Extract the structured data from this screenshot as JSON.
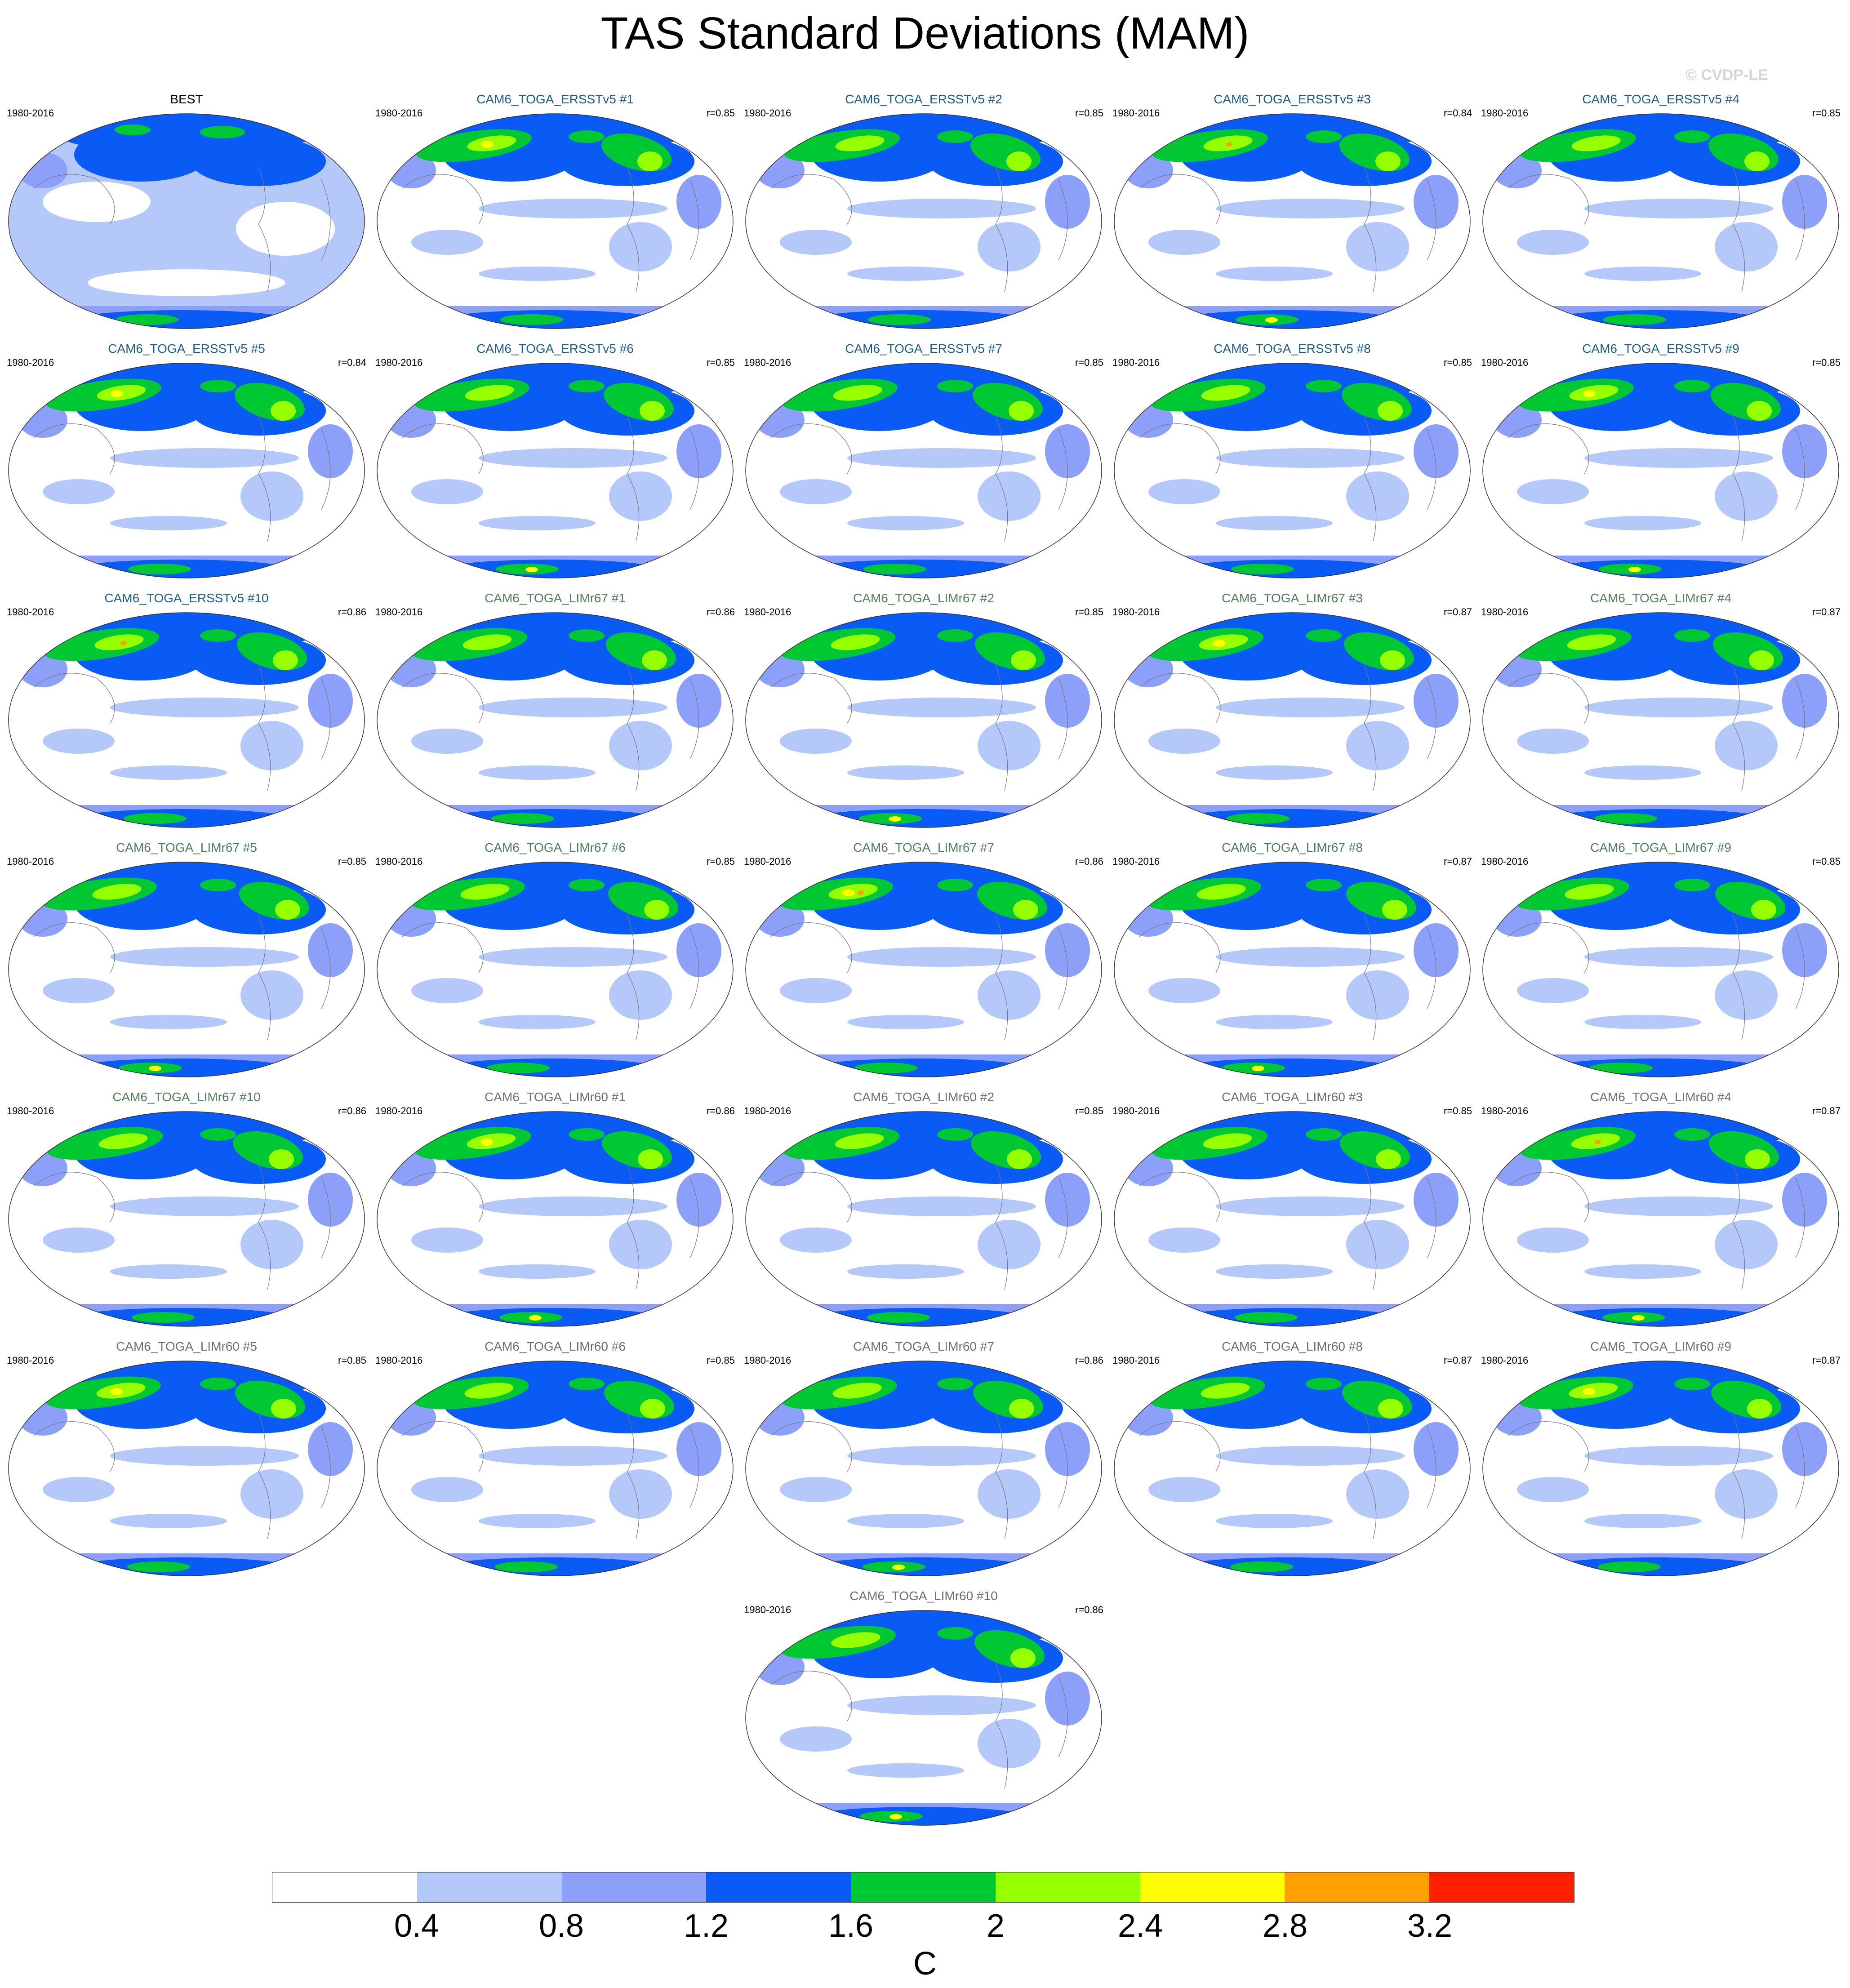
{
  "title": "TAS Standard Deviations (MAM)",
  "watermark": "© CVDP-LE",
  "colors": {
    "ersst_title": "#1d5e86",
    "limr67_title": "#4f7f56",
    "limr60_title": "#6f6f6f",
    "best_title": "#000000"
  },
  "chart_data": {
    "type": "heatmap",
    "variable": "TAS",
    "season": "MAM",
    "panels": [
      {
        "title": "BEST",
        "group": "best",
        "years": "1980-2016",
        "r": ""
      },
      {
        "title": "CAM6_TOGA_ERSSTv5 #1",
        "group": "ersst",
        "years": "1980-2016",
        "r": "r=0.85"
      },
      {
        "title": "CAM6_TOGA_ERSSTv5 #2",
        "group": "ersst",
        "years": "1980-2016",
        "r": "r=0.85"
      },
      {
        "title": "CAM6_TOGA_ERSSTv5 #3",
        "group": "ersst",
        "years": "1980-2016",
        "r": "r=0.84"
      },
      {
        "title": "CAM6_TOGA_ERSSTv5 #4",
        "group": "ersst",
        "years": "1980-2016",
        "r": "r=0.85"
      },
      {
        "title": "CAM6_TOGA_ERSSTv5 #5",
        "group": "ersst",
        "years": "1980-2016",
        "r": "r=0.84"
      },
      {
        "title": "CAM6_TOGA_ERSSTv5 #6",
        "group": "ersst",
        "years": "1980-2016",
        "r": "r=0.85"
      },
      {
        "title": "CAM6_TOGA_ERSSTv5 #7",
        "group": "ersst",
        "years": "1980-2016",
        "r": "r=0.85"
      },
      {
        "title": "CAM6_TOGA_ERSSTv5 #8",
        "group": "ersst",
        "years": "1980-2016",
        "r": "r=0.85"
      },
      {
        "title": "CAM6_TOGA_ERSSTv5 #9",
        "group": "ersst",
        "years": "1980-2016",
        "r": "r=0.85"
      },
      {
        "title": "CAM6_TOGA_ERSSTv5 #10",
        "group": "ersst",
        "years": "1980-2016",
        "r": "r=0.86"
      },
      {
        "title": "CAM6_TOGA_LIMr67 #1",
        "group": "limr67",
        "years": "1980-2016",
        "r": "r=0.86"
      },
      {
        "title": "CAM6_TOGA_LIMr67 #2",
        "group": "limr67",
        "years": "1980-2016",
        "r": "r=0.85"
      },
      {
        "title": "CAM6_TOGA_LIMr67 #3",
        "group": "limr67",
        "years": "1980-2016",
        "r": "r=0.87"
      },
      {
        "title": "CAM6_TOGA_LIMr67 #4",
        "group": "limr67",
        "years": "1980-2016",
        "r": "r=0.87"
      },
      {
        "title": "CAM6_TOGA_LIMr67 #5",
        "group": "limr67",
        "years": "1980-2016",
        "r": "r=0.85"
      },
      {
        "title": "CAM6_TOGA_LIMr67 #6",
        "group": "limr67",
        "years": "1980-2016",
        "r": "r=0.85"
      },
      {
        "title": "CAM6_TOGA_LIMr67 #7",
        "group": "limr67",
        "years": "1980-2016",
        "r": "r=0.86"
      },
      {
        "title": "CAM6_TOGA_LIMr67 #8",
        "group": "limr67",
        "years": "1980-2016",
        "r": "r=0.87"
      },
      {
        "title": "CAM6_TOGA_LIMr67 #9",
        "group": "limr67",
        "years": "1980-2016",
        "r": "r=0.85"
      },
      {
        "title": "CAM6_TOGA_LIMr67 #10",
        "group": "limr67",
        "years": "1980-2016",
        "r": "r=0.86"
      },
      {
        "title": "CAM6_TOGA_LIMr60 #1",
        "group": "limr60",
        "years": "1980-2016",
        "r": "r=0.86"
      },
      {
        "title": "CAM6_TOGA_LIMr60 #2",
        "group": "limr60",
        "years": "1980-2016",
        "r": "r=0.85"
      },
      {
        "title": "CAM6_TOGA_LIMr60 #3",
        "group": "limr60",
        "years": "1980-2016",
        "r": "r=0.85"
      },
      {
        "title": "CAM6_TOGA_LIMr60 #4",
        "group": "limr60",
        "years": "1980-2016",
        "r": "r=0.87"
      },
      {
        "title": "CAM6_TOGA_LIMr60 #5",
        "group": "limr60",
        "years": "1980-2016",
        "r": "r=0.85"
      },
      {
        "title": "CAM6_TOGA_LIMr60 #6",
        "group": "limr60",
        "years": "1980-2016",
        "r": "r=0.85"
      },
      {
        "title": "CAM6_TOGA_LIMr60 #7",
        "group": "limr60",
        "years": "1980-2016",
        "r": "r=0.86"
      },
      {
        "title": "CAM6_TOGA_LIMr60 #8",
        "group": "limr60",
        "years": "1980-2016",
        "r": "r=0.87"
      },
      {
        "title": "CAM6_TOGA_LIMr60 #9",
        "group": "limr60",
        "years": "1980-2016",
        "r": "r=0.87"
      },
      {
        "title": "CAM6_TOGA_LIMr60 #10",
        "group": "limr60",
        "years": "1980-2016",
        "r": "r=0.86"
      }
    ],
    "colorbar": {
      "levels": [
        "0.4",
        "0.8",
        "1.2",
        "1.6",
        "2",
        "2.4",
        "2.8",
        "3.2"
      ],
      "colors": [
        "#ffffff",
        "#b4c8fa",
        "#8ca0fa",
        "#0a5af5",
        "#00c832",
        "#96ff00",
        "#ffff00",
        "#ffa000",
        "#ff1e00"
      ],
      "units": "C"
    }
  }
}
